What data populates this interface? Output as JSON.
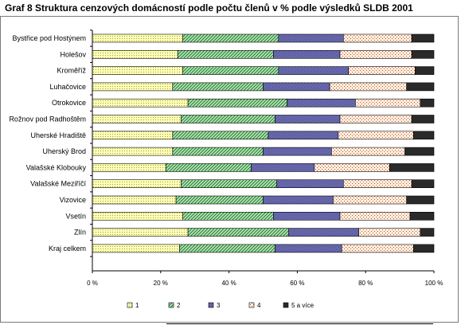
{
  "title": "Graf 8  Struktura cenzových domácností podle počtu členů v % podle výsledků SLDB 2001",
  "chart_data": {
    "type": "bar",
    "orientation": "horizontal",
    "stacked": "percent",
    "title": "Graf 8  Struktura cenzových domácností podle počtu členů v % podle výsledků SLDB 2001",
    "categories": [
      "Bystřice pod Hostýnem",
      "Holešov",
      "Kroměříž",
      "Luhačovice",
      "Otrokovice",
      "Rožnov pod Radhoštěm",
      "Uherské Hradiště",
      "Uherský Brod",
      "Valašské Klobouky",
      "Valašské Meziříčí",
      "Vizovice",
      "Vsetín",
      "Zlín",
      "Kraj celkem"
    ],
    "series": [
      {
        "name": "1",
        "values": [
          26.5,
          25,
          26.5,
          23.5,
          28,
          26,
          23.5,
          23.5,
          21.5,
          26,
          24.5,
          26.5,
          28,
          25.5
        ]
      },
      {
        "name": "2",
        "values": [
          28,
          28,
          28,
          26.5,
          29,
          27.5,
          28,
          26.5,
          25,
          28,
          25.5,
          26.5,
          29.5,
          28
        ]
      },
      {
        "name": "3",
        "values": [
          19,
          19.5,
          20.5,
          19.5,
          20,
          19,
          20.5,
          20,
          18.5,
          19.5,
          20.5,
          19.5,
          20.5,
          19.5
        ]
      },
      {
        "name": "4",
        "values": [
          20,
          21,
          19.5,
          22.5,
          19,
          21,
          22,
          21.5,
          22,
          20,
          21.5,
          20.5,
          18,
          21
        ]
      },
      {
        "name": "5 a více",
        "values": [
          6.5,
          6.5,
          5.5,
          8,
          4,
          6.5,
          6,
          8.5,
          13,
          6.5,
          8,
          7,
          4,
          6
        ]
      }
    ],
    "xlim": [
      0,
      100
    ],
    "xticks": [
      "0 %",
      "20 %",
      "40 %",
      "60 %",
      "80 %",
      "100 %"
    ],
    "grid": false,
    "legend_position": "bottom"
  },
  "colors": {
    "s1_bg": "#ffffb3",
    "s1_dot": "#9a9a60",
    "s2_bg": "#b8e6b0",
    "s2_line": "#1e7a3c",
    "s3_bg": "#6b6bb0",
    "s3_line": "#55559a",
    "s4_bg": "#fff2dc",
    "s4_dot": "#c04040",
    "s5_bg": "#2a2a2a",
    "axis": "#000000"
  }
}
